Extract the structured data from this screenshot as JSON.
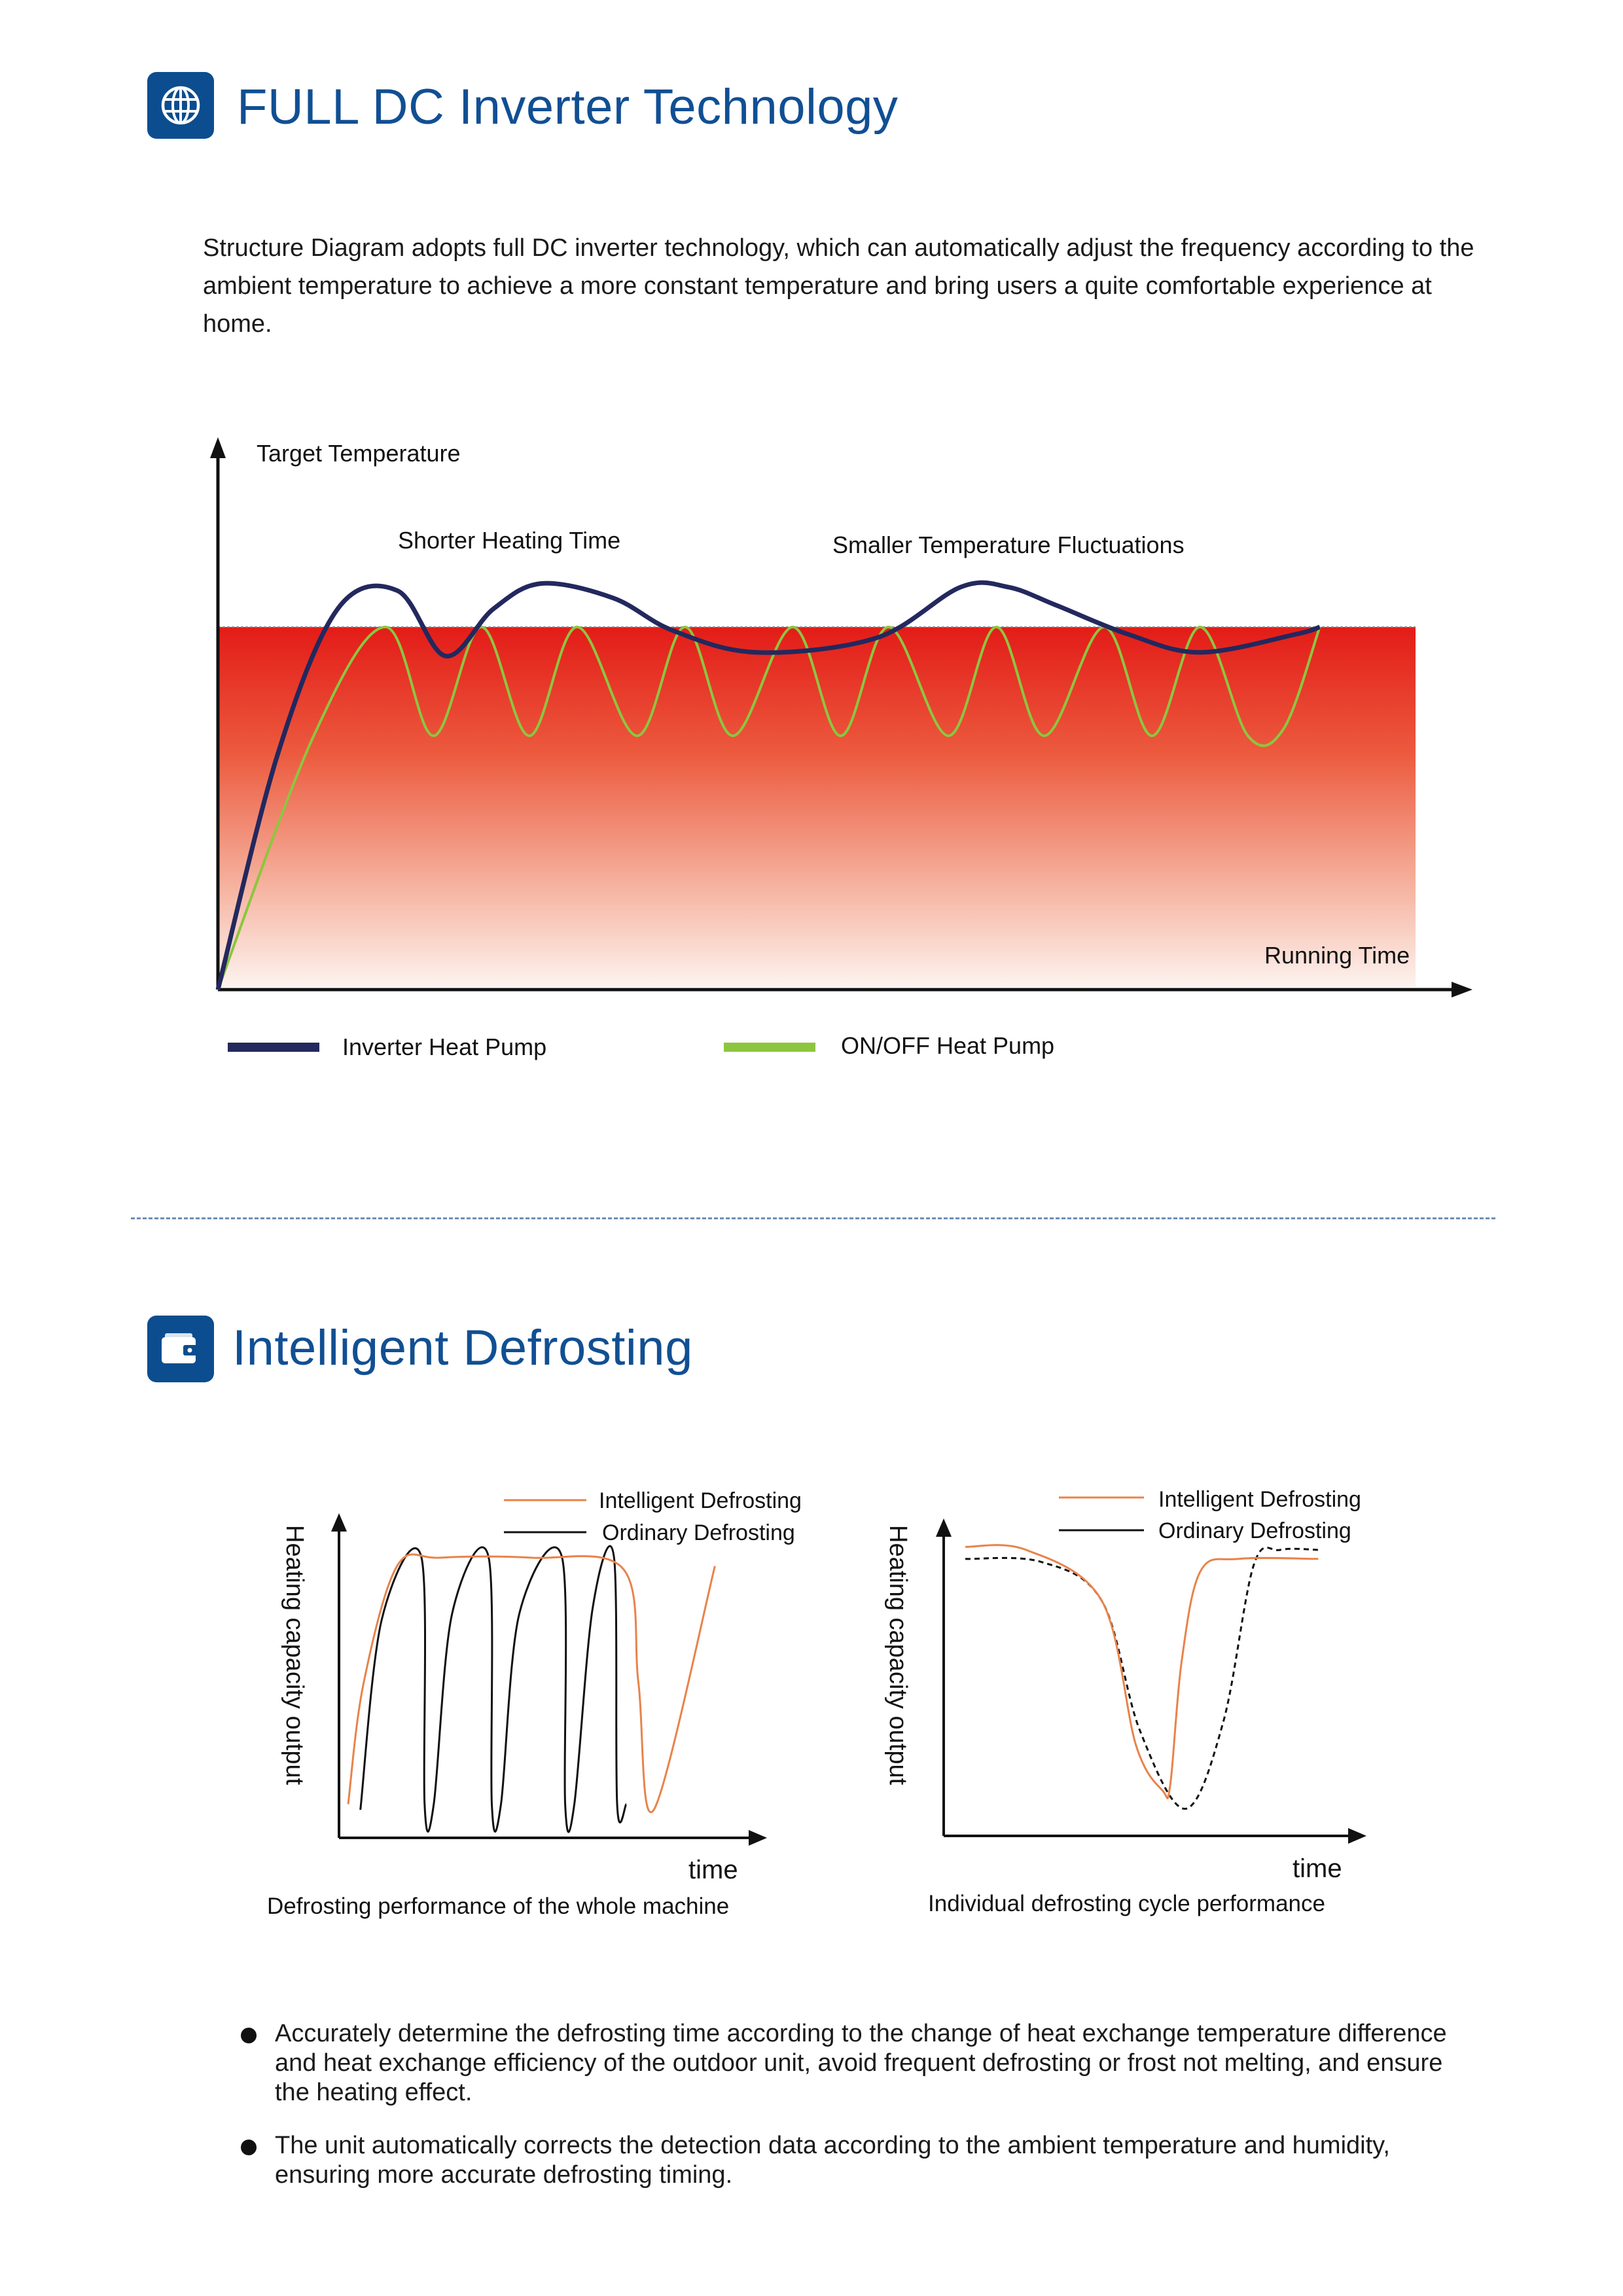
{
  "section1": {
    "icon": "globe-icon",
    "title": "FULL DC Inverter Technology",
    "intro": "Structure Diagram adopts full DC inverter technology, which can automatically adjust the frequency according to the ambient temperature to achieve a more constant temperature and bring users a quite comfortable experience at home."
  },
  "section2": {
    "icon": "wallet-icon",
    "title": "Intelligent Defrosting",
    "bullets": [
      "Accurately determine the defrosting time according to the change of heat exchange temperature difference and heat exchange efficiency of the outdoor unit, avoid frequent defrosting or frost not melting, and ensure the heating effect.",
      "The unit automatically corrects the detection data according to the ambient temperature and humidity, ensuring more accurate defrosting timing."
    ]
  },
  "colors": {
    "brand": "#0c4d8f",
    "title": "#114f93",
    "inverter": "#23285e",
    "onoff": "#8cc63f",
    "intelligent": "#e8834a",
    "ordinary": "#111111",
    "heat_top": "#e42a1f"
  },
  "chart_data": [
    {
      "type": "line",
      "title": "",
      "ylabel": "Target Temperature",
      "xlabel": "Running Time",
      "annotations": [
        "Shorter Heating Time",
        "Smaller Temperature Fluctuations"
      ],
      "target_level": 1.0,
      "series": [
        {
          "name": "Inverter Heat Pump",
          "note": "fast rise with small overshoot, then gentle waves around the target",
          "x": [
            0,
            5,
            10,
            15,
            19,
            23,
            27,
            33,
            38,
            45,
            55,
            62,
            66,
            70,
            76,
            82,
            90,
            92
          ],
          "y": [
            0,
            0.65,
            1.05,
            1.1,
            0.92,
            1.05,
            1.12,
            1.08,
            0.99,
            0.93,
            0.97,
            1.11,
            1.11,
            1.06,
            0.98,
            0.93,
            0.98,
            1.0
          ]
        },
        {
          "name": "ON/OFF Heat Pump",
          "note": "slow rise, then repeated cycling between target and a lower band",
          "x": [
            0,
            8,
            14,
            18,
            22,
            26,
            30,
            35,
            39,
            43,
            48,
            52,
            56,
            61,
            65,
            69,
            74,
            78,
            82,
            86,
            89,
            92
          ],
          "y": [
            0,
            0.7,
            1.0,
            0.7,
            1.0,
            0.7,
            1.0,
            0.7,
            1.0,
            0.7,
            1.0,
            0.7,
            1.0,
            0.7,
            1.0,
            0.7,
            1.0,
            0.7,
            1.0,
            0.7,
            0.72,
            1.0
          ]
        }
      ]
    },
    {
      "type": "line",
      "ylabel": "Heating capacity output",
      "xlabel": "time",
      "caption": "Defrosting performance of the whole machine",
      "series": [
        {
          "name": "Intelligent Defrosting",
          "x": [
            0,
            0.5,
            1.6,
            3,
            6,
            9,
            9.5,
            10,
            12
          ],
          "y": [
            0.12,
            0.55,
            0.97,
            1.0,
            1.0,
            0.96,
            0.55,
            0.1,
            0.97
          ]
        },
        {
          "name": "Ordinary Defrosting",
          "x": [
            0.4,
            1.1,
            2.4,
            2.5,
            2.8,
            3.4,
            4.6,
            4.7,
            5.0,
            5.6,
            7.0,
            7.1,
            7.4,
            8.0,
            8.7,
            8.8,
            9.1
          ],
          "y": [
            0.1,
            0.78,
            1.0,
            0.12,
            0.12,
            0.8,
            1.0,
            0.12,
            0.12,
            0.8,
            1.0,
            0.12,
            0.12,
            0.82,
            1.0,
            0.12,
            0.12
          ]
        }
      ]
    },
    {
      "type": "line",
      "ylabel": "Heating capacity output",
      "xlabel": "time",
      "caption": "Individual defrosting cycle performance",
      "series": [
        {
          "name": "Intelligent Defrosting",
          "x": [
            0,
            1.6,
            3.6,
            4.5,
            5.2,
            5.4,
            5.7,
            6.2,
            7.2,
            9.3
          ],
          "y": [
            0.96,
            0.95,
            0.78,
            0.3,
            0.15,
            0.17,
            0.58,
            0.88,
            0.92,
            0.92
          ]
        },
        {
          "name": "Ordinary Defrosting",
          "x": [
            0,
            2.0,
            3.6,
            4.6,
            5.8,
            6.8,
            7.6,
            8.3,
            9.3
          ],
          "y": [
            0.92,
            0.91,
            0.78,
            0.35,
            0.09,
            0.38,
            0.9,
            0.95,
            0.95
          ]
        }
      ]
    }
  ]
}
